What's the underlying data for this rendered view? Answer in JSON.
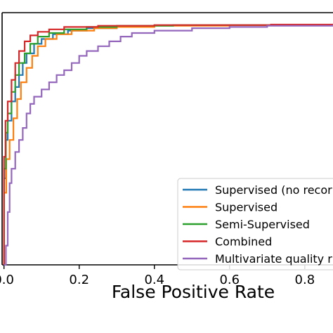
{
  "chart_data": {
    "type": "line",
    "xlabel": "False Positive Rate",
    "ylabel": "",
    "xlim": [
      -0.005,
      0.875
    ],
    "ylim": [
      0,
      1
    ],
    "x_ticks": [
      {
        "value": 0.0,
        "label": "0.0"
      },
      {
        "value": 0.2,
        "label": "0.2"
      },
      {
        "value": 0.4,
        "label": "0.4"
      },
      {
        "value": 0.6,
        "label": "0.6"
      },
      {
        "value": 0.8,
        "label": "0.8"
      }
    ],
    "grid": false,
    "legend_position": "lower-right",
    "series": [
      {
        "name": "Supervised (no recor",
        "color": "#1f77b4",
        "points": [
          [
            0.0,
            0.0
          ],
          [
            0.0,
            0.36
          ],
          [
            0.005,
            0.52
          ],
          [
            0.01,
            0.6
          ],
          [
            0.02,
            0.68
          ],
          [
            0.03,
            0.74
          ],
          [
            0.04,
            0.79
          ],
          [
            0.05,
            0.84
          ],
          [
            0.06,
            0.88
          ],
          [
            0.08,
            0.92
          ],
          [
            0.1,
            0.94
          ],
          [
            0.13,
            0.96
          ],
          [
            0.17,
            0.975
          ],
          [
            0.22,
            0.985
          ],
          [
            0.3,
            0.995
          ],
          [
            0.4,
            0.997
          ],
          [
            0.6,
            0.998
          ],
          [
            0.875,
            1.0
          ]
        ]
      },
      {
        "name": "Supervised",
        "color": "#ff7f0e",
        "points": [
          [
            0.0,
            0.0
          ],
          [
            0.0,
            0.3
          ],
          [
            0.006,
            0.44
          ],
          [
            0.015,
            0.52
          ],
          [
            0.025,
            0.61
          ],
          [
            0.035,
            0.69
          ],
          [
            0.045,
            0.76
          ],
          [
            0.06,
            0.82
          ],
          [
            0.075,
            0.87
          ],
          [
            0.09,
            0.91
          ],
          [
            0.11,
            0.94
          ],
          [
            0.14,
            0.96
          ],
          [
            0.18,
            0.975
          ],
          [
            0.24,
            0.985
          ],
          [
            0.3,
            0.99
          ],
          [
            0.4,
            0.995
          ],
          [
            0.6,
            0.998
          ],
          [
            0.875,
            1.0
          ]
        ]
      },
      {
        "name": "Semi-Supervised",
        "color": "#2ca02c",
        "points": [
          [
            0.0,
            0.0
          ],
          [
            0.0,
            0.4
          ],
          [
            0.005,
            0.55
          ],
          [
            0.01,
            0.63
          ],
          [
            0.02,
            0.72
          ],
          [
            0.03,
            0.79
          ],
          [
            0.04,
            0.84
          ],
          [
            0.055,
            0.88
          ],
          [
            0.07,
            0.92
          ],
          [
            0.09,
            0.95
          ],
          [
            0.12,
            0.965
          ],
          [
            0.16,
            0.98
          ],
          [
            0.22,
            0.99
          ],
          [
            0.3,
            0.995
          ],
          [
            0.45,
            0.998
          ],
          [
            0.875,
            1.0
          ]
        ]
      },
      {
        "name": "Combined",
        "color": "#d62728",
        "points": [
          [
            0.0,
            0.0
          ],
          [
            0.0,
            0.45
          ],
          [
            0.004,
            0.6
          ],
          [
            0.01,
            0.68
          ],
          [
            0.02,
            0.77
          ],
          [
            0.03,
            0.84
          ],
          [
            0.04,
            0.89
          ],
          [
            0.055,
            0.93
          ],
          [
            0.07,
            0.955
          ],
          [
            0.09,
            0.97
          ],
          [
            0.12,
            0.98
          ],
          [
            0.16,
            0.99
          ],
          [
            0.25,
            0.995
          ],
          [
            0.4,
            0.998
          ],
          [
            0.71,
            1.0
          ],
          [
            0.875,
            1.0
          ]
        ]
      },
      {
        "name": "Multivariate quality r",
        "color": "#9467bd",
        "points": [
          [
            0.0,
            0.0
          ],
          [
            0.005,
            0.08
          ],
          [
            0.01,
            0.22
          ],
          [
            0.015,
            0.34
          ],
          [
            0.02,
            0.4
          ],
          [
            0.03,
            0.47
          ],
          [
            0.04,
            0.52
          ],
          [
            0.05,
            0.57
          ],
          [
            0.06,
            0.63
          ],
          [
            0.07,
            0.67
          ],
          [
            0.08,
            0.7
          ],
          [
            0.1,
            0.73
          ],
          [
            0.12,
            0.76
          ],
          [
            0.14,
            0.79
          ],
          [
            0.16,
            0.81
          ],
          [
            0.18,
            0.84
          ],
          [
            0.2,
            0.87
          ],
          [
            0.22,
            0.89
          ],
          [
            0.25,
            0.91
          ],
          [
            0.28,
            0.93
          ],
          [
            0.31,
            0.95
          ],
          [
            0.34,
            0.965
          ],
          [
            0.4,
            0.975
          ],
          [
            0.5,
            0.985
          ],
          [
            0.6,
            0.99
          ],
          [
            0.7,
            0.995
          ],
          [
            0.875,
            1.0
          ]
        ]
      }
    ]
  }
}
